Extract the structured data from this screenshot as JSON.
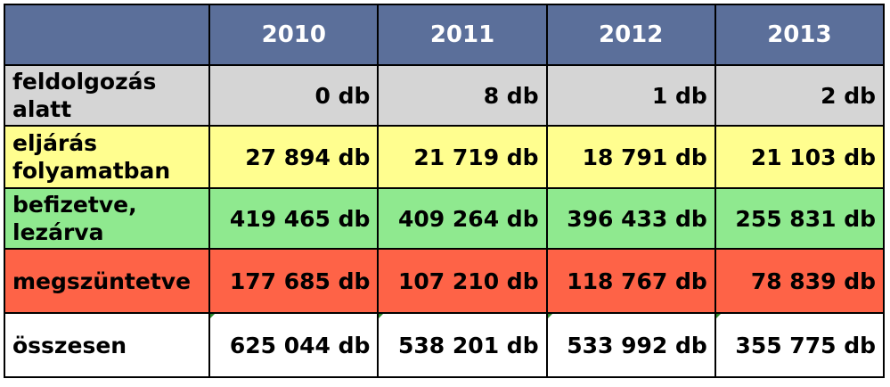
{
  "chart_data": {
    "type": "table",
    "columns": [
      "2010",
      "2011",
      "2012",
      "2013"
    ],
    "rows": [
      {
        "label": "feldolgozás alatt",
        "values": [
          "0 db",
          "8 db",
          "1 db",
          "2 db"
        ],
        "color": "#d5d5d5"
      },
      {
        "label": "eljárás folyamatban",
        "values": [
          "27 894 db",
          "21 719 db",
          "18 791 db",
          "21 103 db"
        ],
        "color": "#fffe8f"
      },
      {
        "label": "befizetve, lezárva",
        "values": [
          "419 465 db",
          "409 264 db",
          "396 433 db",
          "255 831 db"
        ],
        "color": "#8fe98f"
      },
      {
        "label": "megszüntetve",
        "values": [
          "177 685 db",
          "107 210 db",
          "118 767 db",
          "78 839 db"
        ],
        "color": "#fe6347"
      },
      {
        "label": "összesen",
        "values": [
          "625 044 db",
          "538 201 db",
          "533 992 db",
          "355 775 db"
        ],
        "color": "#ffffff"
      }
    ],
    "header_color": "#5b6f9a"
  }
}
